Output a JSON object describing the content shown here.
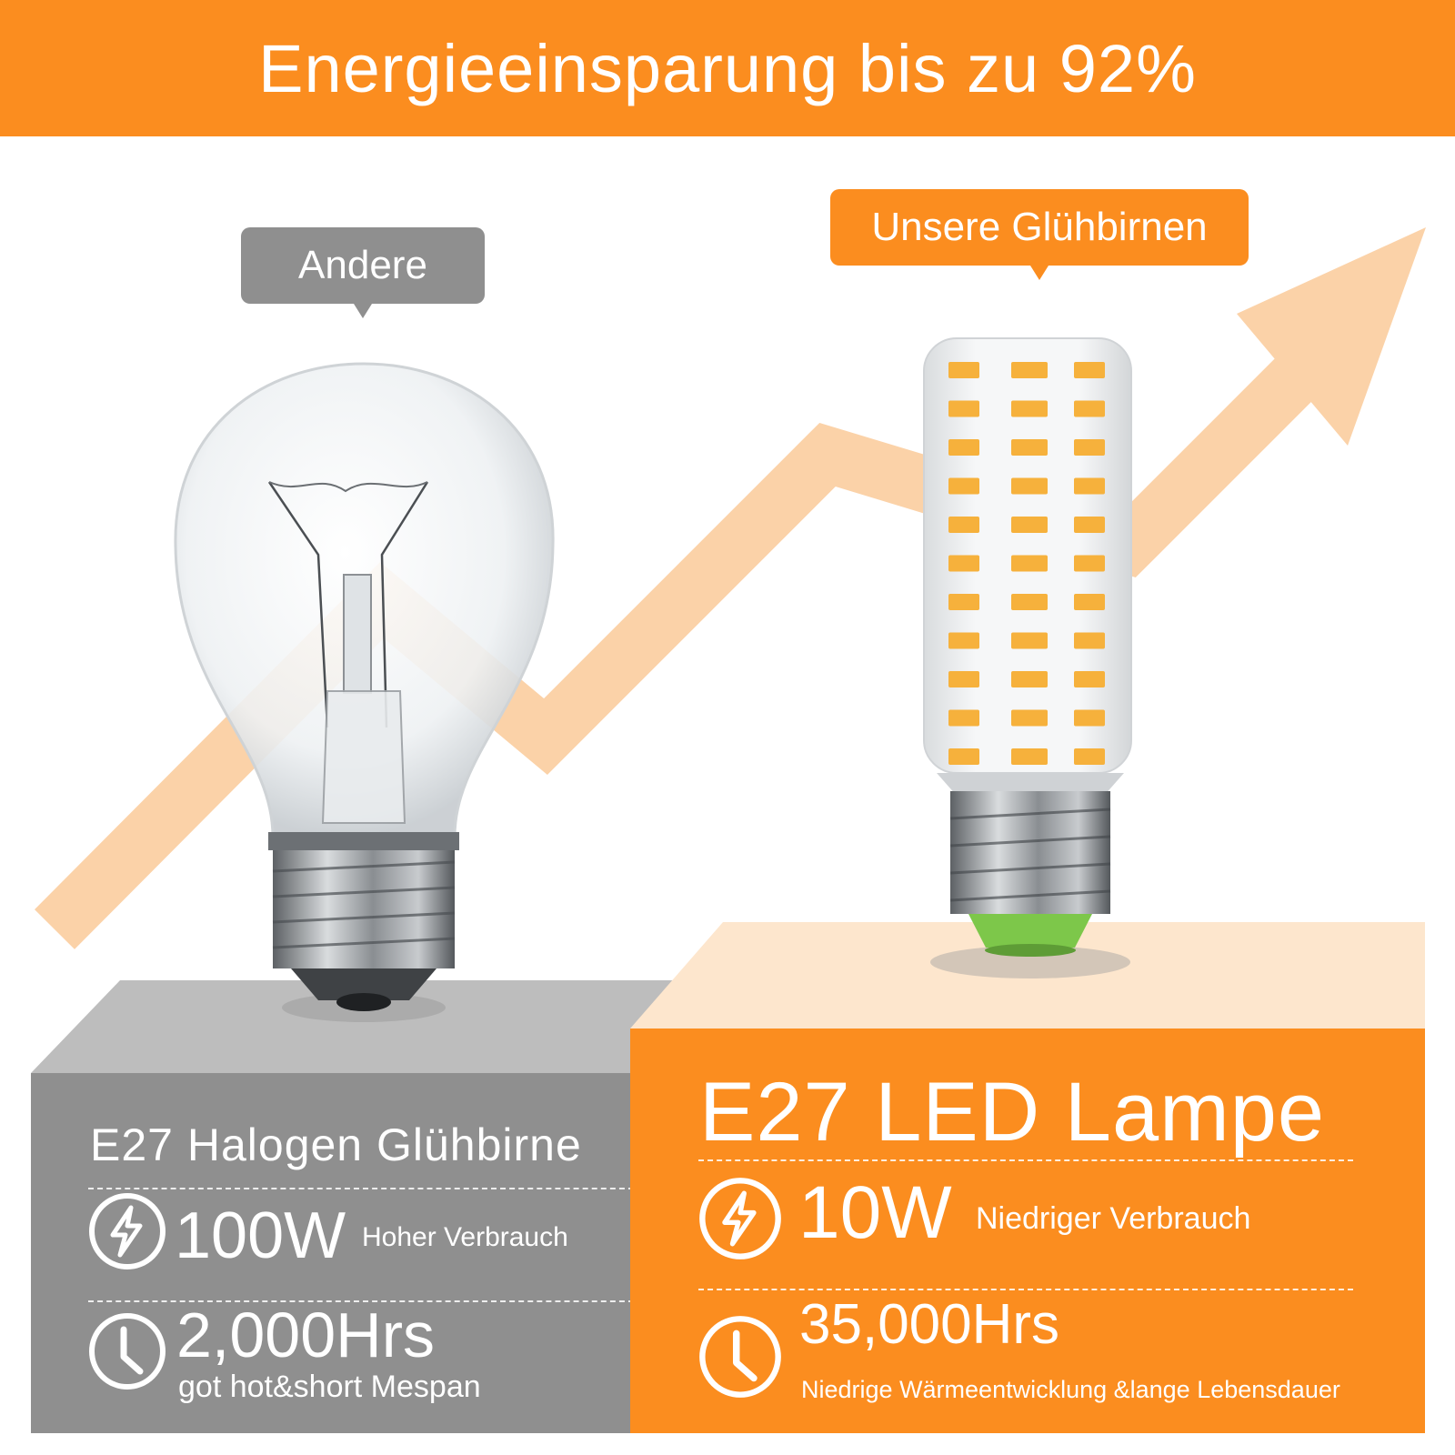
{
  "banner": {
    "text": "Energieeinsparung bis zu 92%"
  },
  "bubbles": {
    "left": "Andere",
    "right": "Unsere Glühbirnen"
  },
  "left_panel": {
    "title": "E27 Halogen Glühbirne",
    "power_value": "100W",
    "power_note": "Hoher Verbrauch",
    "life_value": "2,000Hrs",
    "life_note": "got hot&short Mespan"
  },
  "right_panel": {
    "title": "E27 LED Lampe",
    "power_value": "10W",
    "power_note": "Niedriger Verbrauch",
    "life_value": "35,000Hrs",
    "life_note": "Niedrige Wärmeentwicklung &lange Lebensdauer"
  },
  "icons": {
    "power": "lightning-bolt-icon",
    "life": "clock-icon"
  },
  "colors": {
    "accent_orange": "#fb8d1f",
    "arrow_orange": "#fbd2a8",
    "gray_panel": "#8f8f8f",
    "gray_platform_top": "#bcbcbc",
    "orange_platform_top": "#fde7cf"
  }
}
